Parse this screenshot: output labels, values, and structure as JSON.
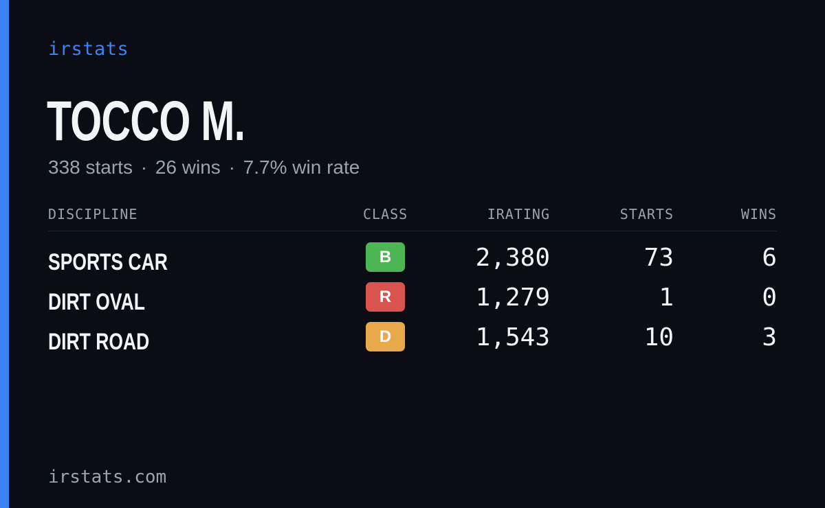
{
  "brand": "irstats",
  "driver": {
    "name": "TOCCO M.",
    "starts_text": "338 starts",
    "wins_text": "26 wins",
    "win_rate_text": "7.7% win rate",
    "separator": "·"
  },
  "table": {
    "headers": {
      "discipline": "DISCIPLINE",
      "class": "CLASS",
      "irating": "IRATING",
      "starts": "STARTS",
      "wins": "WINS"
    },
    "rows": [
      {
        "discipline": "SPORTS CAR",
        "class": "B",
        "class_color": "#4cb653",
        "irating": "2,380",
        "starts": "73",
        "wins": "6"
      },
      {
        "discipline": "DIRT OVAL",
        "class": "R",
        "class_color": "#d9534f",
        "irating": "1,279",
        "starts": "1",
        "wins": "0"
      },
      {
        "discipline": "DIRT ROAD",
        "class": "D",
        "class_color": "#e8a94a",
        "irating": "1,543",
        "starts": "10",
        "wins": "3"
      }
    ]
  },
  "footer": {
    "site": "irstats.com"
  },
  "colors": {
    "accent": "#3b82f6",
    "background": "#0a0d14",
    "muted_text": "#9ca3af",
    "primary_text": "#f3f4f6"
  }
}
